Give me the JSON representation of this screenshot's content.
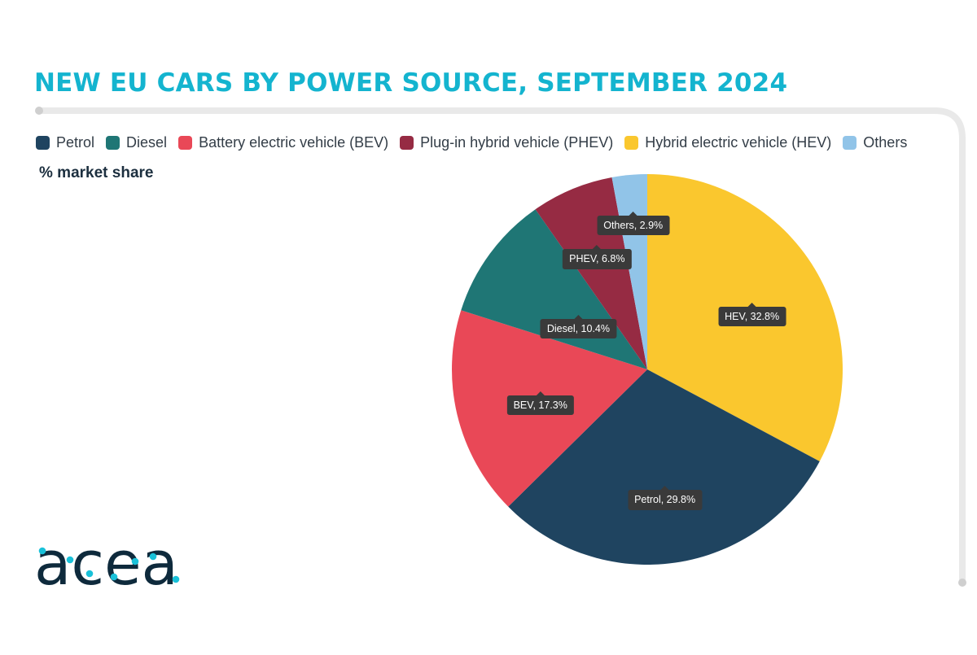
{
  "title": "NEW EU CARS BY POWER SOURCE, SEPTEMBER 2024",
  "subtitle": "% market share",
  "logo_text": "acea",
  "colors": {
    "title": "#14b4cf",
    "frame": "#e9e9e9",
    "tooltip_bg": "#3a3a3a",
    "logo": "#0e2a3c",
    "logo_dots": "#19c1d9"
  },
  "chart_data": {
    "type": "pie",
    "title": "NEW EU CARS BY POWER SOURCE, SEPTEMBER 2024",
    "value_label": "% market share",
    "legend_position": "top-left",
    "legend": [
      {
        "name": "Petrol",
        "color": "#1f4460"
      },
      {
        "name": "Diesel",
        "color": "#1f7675"
      },
      {
        "name": "Battery electric vehicle (BEV)",
        "color": "#e94857"
      },
      {
        "name": "Plug-in hybrid vehicle (PHEV)",
        "color": "#962b43"
      },
      {
        "name": "Hybrid electric vehicle (HEV)",
        "color": "#fac72e"
      },
      {
        "name": "Others",
        "color": "#91c4e8"
      }
    ],
    "slices": [
      {
        "name": "HEV",
        "value": 32.8,
        "label": "HEV, 32.8%",
        "color": "#fac72e"
      },
      {
        "name": "Petrol",
        "value": 29.8,
        "label": "Petrol, 29.8%",
        "color": "#1f4460"
      },
      {
        "name": "BEV",
        "value": 17.3,
        "label": "BEV, 17.3%",
        "color": "#e94857"
      },
      {
        "name": "Diesel",
        "value": 10.4,
        "label": "Diesel, 10.4%",
        "color": "#1f7675"
      },
      {
        "name": "PHEV",
        "value": 6.8,
        "label": "PHEV, 6.8%",
        "color": "#962b43"
      },
      {
        "name": "Others",
        "value": 2.9,
        "label": "Others, 2.9%",
        "color": "#91c4e8"
      }
    ]
  }
}
